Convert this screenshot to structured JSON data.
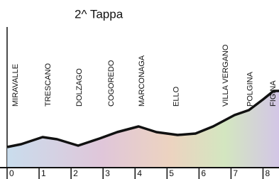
{
  "chart_data": {
    "type": "line",
    "title": "2^ Tappa",
    "x": [
      0,
      0.44,
      1.11,
      1.56,
      2.22,
      2.89,
      3.44,
      4.11,
      4.67,
      5.33,
      5.89,
      6.44,
      7.11,
      7.56,
      8,
      8.33,
      8.5
    ],
    "values": [
      29,
      33,
      43,
      40,
      31,
      41,
      50,
      58,
      50,
      46,
      48,
      58,
      74,
      81,
      96,
      108,
      108
    ],
    "color": "#111111",
    "xlim": [
      0,
      8.5
    ],
    "xticks": [
      0,
      1,
      2,
      3,
      4,
      5,
      6,
      7,
      8
    ],
    "ylim": [
      0,
      200
    ],
    "towns": [
      {
        "name": "MIRAVALLE",
        "x": 0.27
      },
      {
        "name": "TRESCANO",
        "x": 1.29
      },
      {
        "name": "DOLZAGO",
        "x": 2.27
      },
      {
        "name": "COGOREDO",
        "x": 3.27
      },
      {
        "name": "MARCONAGA",
        "x": 4.22
      },
      {
        "name": "ELLO",
        "x": 5.29
      },
      {
        "name": "VILLA VERGANO",
        "x": 6.84
      },
      {
        "name": "POLGINA",
        "x": 7.6
      },
      {
        "name": "FIGINA",
        "x": 8.33
      }
    ]
  }
}
